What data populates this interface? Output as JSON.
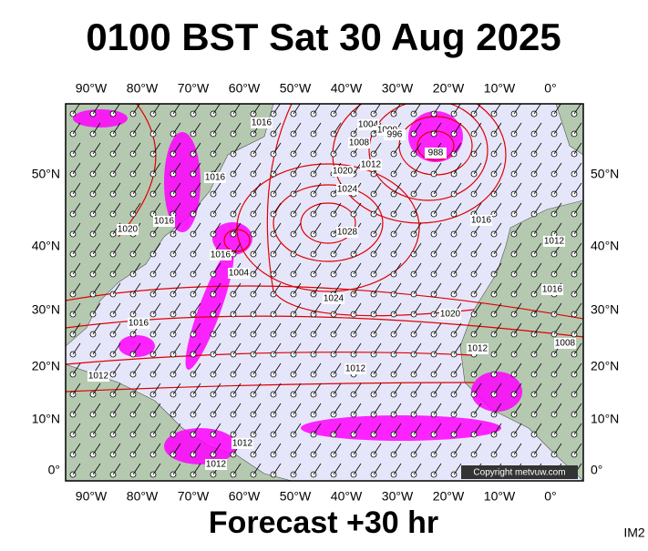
{
  "header": {
    "title": "0100 BST Sat 30 Aug 2025"
  },
  "map": {
    "lon_labels": [
      "90°W",
      "80°W",
      "70°W",
      "60°W",
      "50°W",
      "40°W",
      "30°W",
      "20°W",
      "10°W",
      "0°"
    ],
    "lat_labels": [
      "50°N",
      "40°N",
      "30°N",
      "20°N",
      "10°N",
      "0°"
    ],
    "isobar_labels": [
      "1016",
      "1004",
      "1000",
      "996",
      "1008",
      "1012",
      "988",
      "1020",
      "1024",
      "1016",
      "1016",
      "1020",
      "1028",
      "1016",
      "1004",
      "1024",
      "1016",
      "1020",
      "1012",
      "1016",
      "1012",
      "1008",
      "1012",
      "1012",
      "1012",
      "1012",
      "1016"
    ],
    "copyright": "Copyright metvuw.com"
  },
  "footer": {
    "forecast": "Forecast +30 hr",
    "image_id": "IM2"
  }
}
